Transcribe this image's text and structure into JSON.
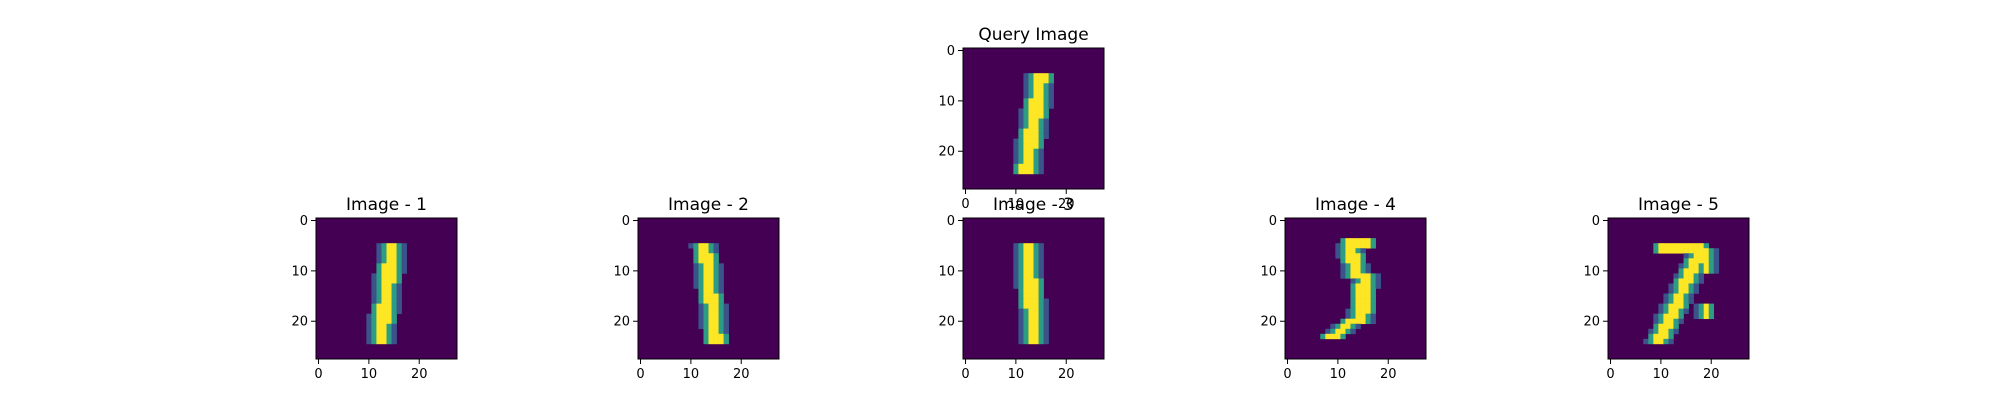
{
  "chart_data": [
    {
      "type": "heatmap",
      "title": "Query Image",
      "colormap": "viridis",
      "matrix_size": [
        28,
        28
      ],
      "xticks": [
        "0",
        "10",
        "20"
      ],
      "yticks": [
        "0",
        "10",
        "20"
      ],
      "strokes": [
        {
          "rows": [
            5,
            24
          ],
          "x_top": 15.4,
          "x_bottom": 12.6,
          "width": 2.6
        }
      ]
    },
    {
      "type": "heatmap",
      "title": "Image - 1",
      "colormap": "viridis",
      "matrix_size": [
        28,
        28
      ],
      "xticks": [
        "0",
        "10",
        "20"
      ],
      "yticks": [
        "0",
        "10",
        "20"
      ],
      "strokes": [
        {
          "rows": [
            5,
            24
          ],
          "x_top": 15.2,
          "x_bottom": 12.8,
          "width": 2.6
        }
      ]
    },
    {
      "type": "heatmap",
      "title": "Image - 2",
      "colormap": "viridis",
      "matrix_size": [
        28,
        28
      ],
      "xticks": [
        "0",
        "10",
        "20"
      ],
      "yticks": [
        "0",
        "10",
        "20"
      ],
      "strokes": [
        {
          "rows": [
            5,
            24
          ],
          "x_top": 13.2,
          "x_bottom": 15.6,
          "width": 2.2
        }
      ]
    },
    {
      "type": "heatmap",
      "title": "Image - 3",
      "colormap": "viridis",
      "matrix_size": [
        28,
        28
      ],
      "xticks": [
        "0",
        "10",
        "20"
      ],
      "yticks": [
        "0",
        "10",
        "20"
      ],
      "strokes": [
        {
          "rows": [
            5,
            24
          ],
          "x_top": 12.8,
          "x_bottom": 14.2,
          "width": 2.4
        }
      ]
    },
    {
      "type": "heatmap",
      "title": "Image - 4",
      "colormap": "viridis",
      "matrix_size": [
        28,
        28
      ],
      "xticks": [
        "0",
        "10",
        "20"
      ],
      "yticks": [
        "0",
        "10",
        "20"
      ],
      "strokes": [
        {
          "rows": [
            4,
            5
          ],
          "x_top": 14.5,
          "x_bottom": 14.5,
          "width": 4.5
        },
        {
          "rows": [
            5,
            11
          ],
          "x_top": 12.8,
          "x_bottom": 14.3,
          "width": 2.4
        },
        {
          "rows": [
            11,
            20
          ],
          "x_top": 15.8,
          "x_bottom": 15.2,
          "width": 2.4
        },
        {
          "rows": [
            20,
            23
          ],
          "x_top": 13.5,
          "x_bottom": 9.5,
          "width": 2.0
        }
      ]
    },
    {
      "type": "heatmap",
      "title": "Image - 5",
      "colormap": "viridis",
      "matrix_size": [
        28,
        28
      ],
      "xticks": [
        "0",
        "10",
        "20"
      ],
      "yticks": [
        "0",
        "10",
        "20"
      ],
      "strokes": [
        {
          "rows": [
            5,
            6
          ],
          "x_top": 14.5,
          "x_bottom": 14.5,
          "width": 8.0
        },
        {
          "rows": [
            6,
            24
          ],
          "x_top": 18.5,
          "x_bottom": 10.0,
          "width": 2.4
        },
        {
          "rows": [
            6,
            10
          ],
          "x_top": 19.5,
          "x_bottom": 19.5,
          "width": 1.2
        },
        {
          "rows": [
            17,
            19
          ],
          "x_top": 19.2,
          "x_bottom": 19.2,
          "width": 1.0
        }
      ]
    }
  ]
}
